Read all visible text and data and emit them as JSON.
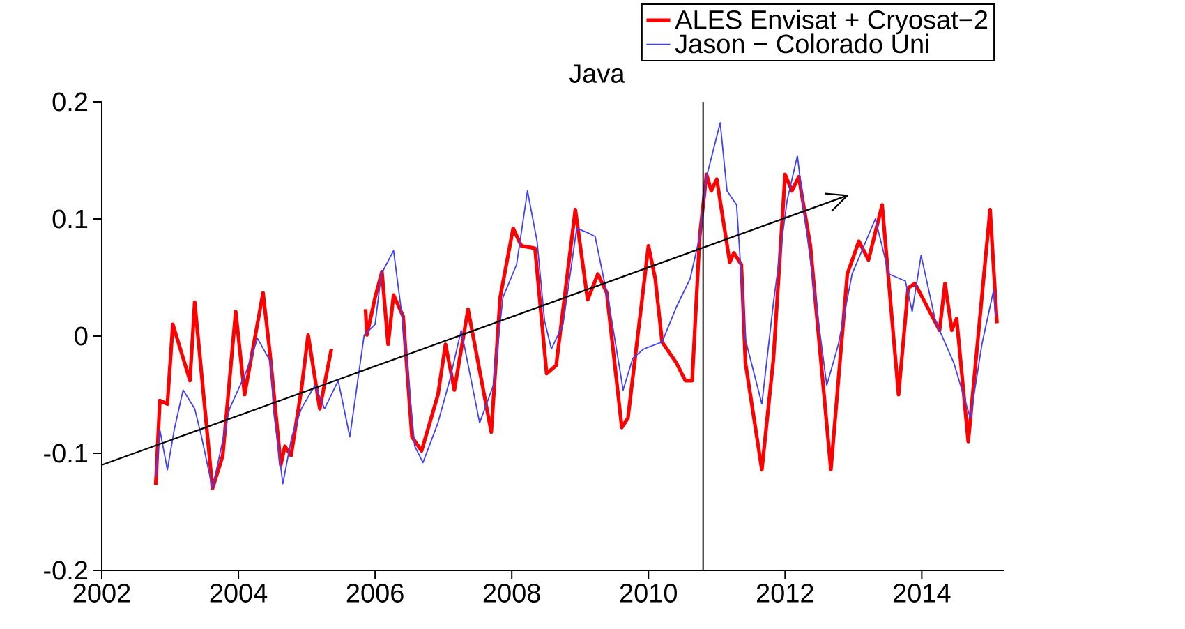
{
  "chart_data": {
    "type": "line",
    "title": "Java",
    "xlim": [
      2002,
      2015.2
    ],
    "xticks": [
      2002,
      2004,
      2006,
      2008,
      2010,
      2012,
      2014
    ],
    "ylim": [
      -0.2,
      0.2
    ],
    "yticks": [
      -0.2,
      -0.1,
      0,
      0.1,
      0.2
    ],
    "grid": false,
    "legend": "top right",
    "marker": "none",
    "line_style": "solid",
    "ref_lines": [
      {
        "axis": "x",
        "value": 2010.8,
        "color": "#000000"
      }
    ],
    "series": [
      {
        "name": "ALES Envisat + Cryosat−2",
        "color": "#ff0000",
        "x": [
          2002.79,
          2002.85,
          2002.96,
          2003.04,
          2003.29,
          2003.36,
          2003.62,
          2003.77,
          2003.96,
          2004.09,
          2004.36,
          2004.46,
          2004.62,
          2004.68,
          2004.77,
          2004.92,
          2005.02,
          2005.19,
          2005.36,
          2005.6,
          2005.86,
          2005.88,
          2006.0,
          2006.1,
          2006.19,
          2006.27,
          2006.41,
          2006.54,
          2006.68,
          2006.92,
          2007.03,
          2007.16,
          2007.36,
          2007.7,
          2007.83,
          2008.02,
          2008.14,
          2008.34,
          2008.51,
          2008.65,
          2008.93,
          2009.11,
          2009.26,
          2009.39,
          2009.61,
          2009.7,
          2010.0,
          2010.1,
          2010.2,
          2010.41,
          2010.54,
          2010.64,
          2010.75,
          2010.85,
          2010.92,
          2011.0,
          2011.19,
          2011.25,
          2011.36,
          2011.42,
          2011.66,
          2011.83,
          2012.0,
          2012.1,
          2012.2,
          2012.37,
          2012.67,
          2012.91,
          2013.08,
          2013.22,
          2013.42,
          2013.66,
          2013.8,
          2013.9,
          2014.26,
          2014.34,
          2014.44,
          2014.51,
          2014.68,
          2015.0,
          2015.1
        ],
        "values": [
          -0.127,
          -0.055,
          -0.058,
          0.01,
          -0.038,
          0.029,
          -0.13,
          -0.102,
          0.021,
          -0.05,
          0.037,
          -0.014,
          -0.11,
          -0.094,
          -0.102,
          -0.046,
          0.001,
          -0.062,
          -0.011,
          null,
          0.023,
          0.001,
          0.033,
          0.055,
          -0.007,
          0.035,
          0.017,
          -0.086,
          -0.098,
          -0.05,
          -0.007,
          -0.046,
          0.023,
          -0.082,
          0.033,
          0.092,
          0.077,
          0.075,
          -0.032,
          -0.025,
          0.108,
          0.031,
          0.053,
          0.037,
          -0.078,
          -0.07,
          0.077,
          0.049,
          -0.005,
          -0.023,
          -0.038,
          -0.038,
          0.085,
          0.138,
          0.124,
          0.134,
          0.063,
          0.071,
          0.061,
          -0.023,
          -0.114,
          -0.019,
          0.138,
          0.124,
          0.136,
          0.077,
          -0.114,
          0.053,
          0.081,
          0.065,
          0.112,
          -0.05,
          0.041,
          0.045,
          0.005,
          0.045,
          0.005,
          0.015,
          -0.09,
          0.108,
          0.011
        ]
      },
      {
        "name": "Jason − Colorado Uni",
        "color": "#4040ff",
        "x": [
          2002.79,
          2002.85,
          2002.96,
          2003.06,
          2003.19,
          2003.36,
          2003.46,
          2003.62,
          2003.87,
          2004.11,
          2004.28,
          2004.48,
          2004.51,
          2004.65,
          2004.78,
          2004.92,
          2005.12,
          2005.26,
          2005.46,
          2005.63,
          2005.84,
          2006.0,
          2006.09,
          2006.27,
          2006.41,
          2006.58,
          2006.7,
          2006.92,
          2007.09,
          2007.26,
          2007.53,
          2007.73,
          2007.87,
          2008.07,
          2008.23,
          2008.37,
          2008.48,
          2008.58,
          2008.75,
          2008.95,
          2009.12,
          2009.22,
          2009.43,
          2009.63,
          2009.77,
          2009.93,
          2010.2,
          2010.41,
          2010.61,
          2010.75,
          2010.85,
          2011.05,
          2011.15,
          2011.29,
          2011.42,
          2011.66,
          2011.83,
          2012.03,
          2012.18,
          2012.3,
          2012.61,
          2012.78,
          2012.98,
          2013.32,
          2013.52,
          2013.76,
          2013.86,
          2013.99,
          2014.2,
          2014.47,
          2014.71,
          2014.88,
          2015.05,
          2015.08
        ],
        "values": [
          -0.12,
          -0.08,
          -0.114,
          -0.08,
          -0.046,
          -0.062,
          -0.086,
          -0.13,
          -0.062,
          -0.031,
          -0.002,
          -0.023,
          -0.062,
          -0.126,
          -0.086,
          -0.062,
          -0.042,
          -0.062,
          -0.038,
          -0.086,
          0.001,
          0.01,
          0.053,
          0.073,
          0.01,
          -0.094,
          -0.108,
          -0.074,
          -0.038,
          0.005,
          -0.074,
          -0.042,
          0.033,
          0.061,
          0.124,
          0.081,
          0.013,
          -0.011,
          0.01,
          0.092,
          0.088,
          0.085,
          0.025,
          -0.046,
          -0.019,
          -0.011,
          -0.005,
          0.025,
          0.049,
          0.085,
          0.136,
          0.182,
          0.124,
          0.112,
          -0.003,
          -0.058,
          0.029,
          0.116,
          0.154,
          0.096,
          -0.042,
          -0.007,
          0.053,
          0.1,
          0.053,
          0.047,
          0.021,
          0.069,
          0.013,
          -0.023,
          -0.07,
          -0.007,
          0.039,
          0.017
        ]
      },
      {
        "type": "line",
        "color": "#000000",
        "x": [
          2002.0,
          2012.91
        ],
        "values": [
          -0.11,
          0.12
        ]
      }
    ]
  }
}
